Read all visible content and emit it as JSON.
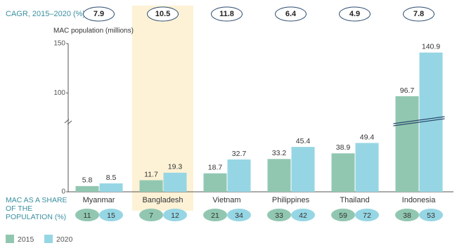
{
  "chart_data": {
    "type": "bar",
    "cagr_label": "CAGR, 2015–2020 (%)",
    "y_label": "MAC population (millions)",
    "share_label": "MAC AS A SHARE OF THE POPULATION (%)",
    "categories": [
      "Myanmar",
      "Bangladesh",
      "Vietnam",
      "Philippines",
      "Thailand",
      "Indonesia"
    ],
    "cagr": [
      7.9,
      10.5,
      11.8,
      6.4,
      4.9,
      7.8
    ],
    "highlight": "Bangladesh",
    "series": [
      {
        "name": "2015",
        "color": "#91c7b1",
        "values": [
          5.8,
          11.7,
          18.7,
          33.2,
          38.9,
          96.7
        ],
        "shares": [
          11,
          7,
          21,
          33,
          59,
          38
        ]
      },
      {
        "name": "2020",
        "color": "#96d6e4",
        "values": [
          8.5,
          19.3,
          32.7,
          45.4,
          49.4,
          140.9
        ],
        "shares": [
          15,
          12,
          34,
          42,
          72,
          53
        ]
      }
    ],
    "ylim": [
      0,
      150
    ],
    "yticks": [
      0,
      100,
      150
    ],
    "axis_break": true
  }
}
